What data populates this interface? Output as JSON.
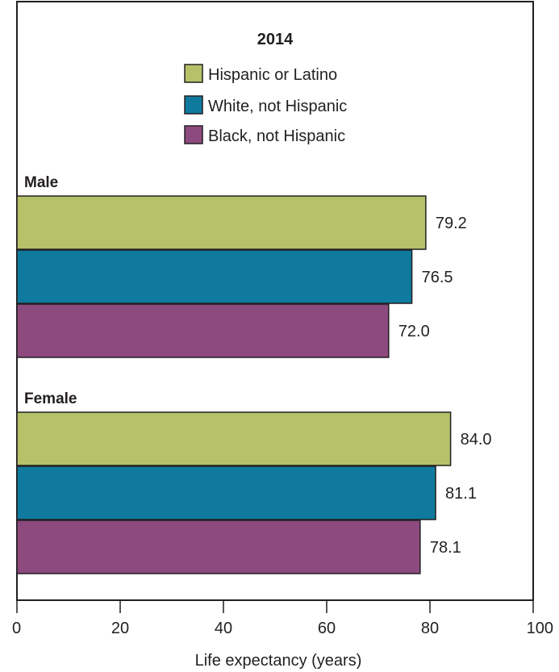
{
  "chart_data": {
    "type": "bar",
    "orientation": "horizontal",
    "legend_title": "2014",
    "legend_position": "top-center",
    "categories": [
      "Male",
      "Female"
    ],
    "series": [
      {
        "name": "Hispanic or Latino",
        "color": "#b5c26a",
        "values": [
          79.2,
          84.0
        ]
      },
      {
        "name": "White, not Hispanic",
        "color": "#0f7a9e",
        "values": [
          76.5,
          81.1
        ]
      },
      {
        "name": "Black, not Hispanic",
        "color": "#8c4a7f",
        "values": [
          72.0,
          78.1
        ]
      }
    ],
    "value_labels": [
      [
        "79.2",
        "84.0"
      ],
      [
        "76.5",
        "81.1"
      ],
      [
        "72.0",
        "78.1"
      ]
    ],
    "xlabel": "Life expectancy (years)",
    "xlim": [
      0,
      100
    ],
    "xticks": [
      0,
      20,
      40,
      60,
      80,
      100
    ],
    "grid": false
  }
}
